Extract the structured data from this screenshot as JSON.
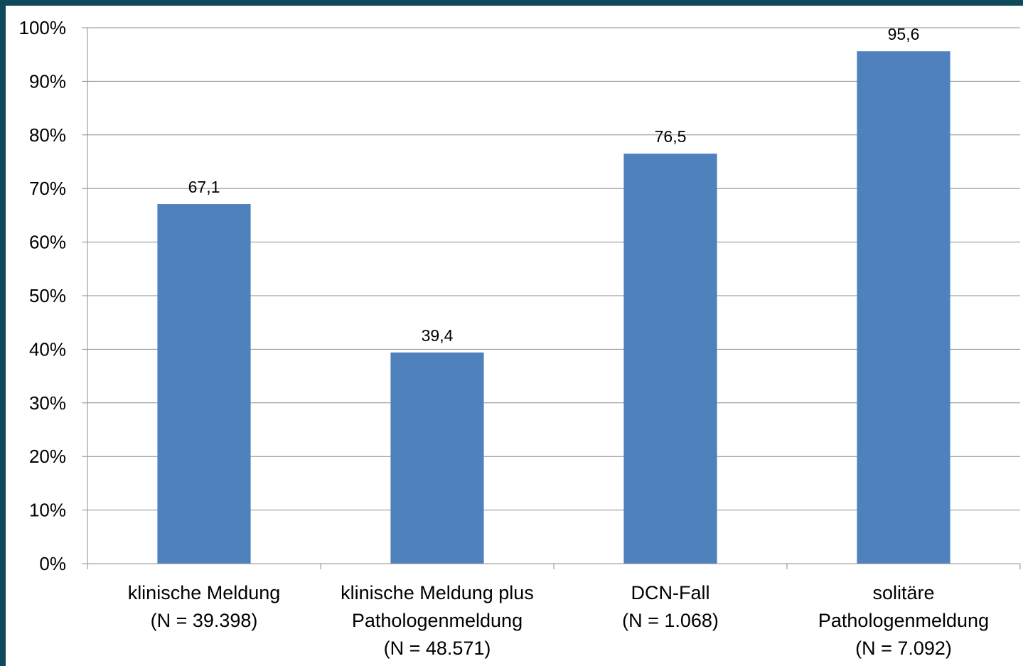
{
  "chart_data": {
    "type": "bar",
    "categories": [
      [
        "klinische Meldung",
        "(N = 39.398)"
      ],
      [
        "klinische Meldung plus",
        "Pathologenmeldung",
        "(N = 48.571)"
      ],
      [
        "DCN-Fall",
        "(N = 1.068)"
      ],
      [
        "solitäre",
        "Pathologenmeldung",
        "(N = 7.092)"
      ]
    ],
    "values": [
      67.1,
      39.4,
      76.5,
      95.6
    ],
    "data_labels": [
      "67,1",
      "39,4",
      "76,5",
      "95,6"
    ],
    "y_ticks": [
      "0%",
      "10%",
      "20%",
      "30%",
      "40%",
      "50%",
      "60%",
      "70%",
      "80%",
      "90%",
      "100%"
    ],
    "ylim": [
      0,
      100
    ],
    "grid": true,
    "bar_color": "#4f81bd",
    "title": "",
    "xlabel": "",
    "ylabel": ""
  }
}
